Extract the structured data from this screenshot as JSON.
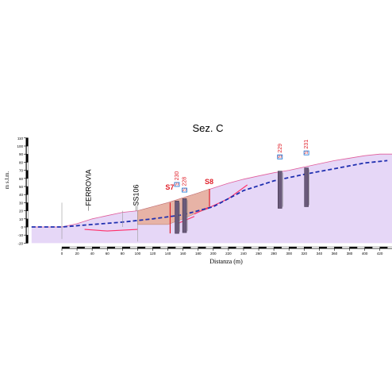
{
  "title": "Sez. C",
  "ylabel": "m s.l.m.",
  "xlabel": "Distanza (m)",
  "colors": {
    "terrain_fill": "#e6d7f7",
    "terrain_line": "#e05c9a",
    "cover_fill": "#e7b3a6",
    "water_line": "#1f2fb0",
    "pink_lines": "#ff2f6a",
    "borehole": "#6a5a7a",
    "borehole_label": "#e0202a",
    "piezometer": "#2f7fd6",
    "axis": "#000000"
  },
  "chart_data": {
    "type": "cross-section",
    "title": "Sez. C",
    "xlabel": "Distanza (m)",
    "ylabel": "m s.l.m.",
    "xlim": [
      -40,
      460
    ],
    "ylim": [
      -20,
      110
    ],
    "x_ticks": [
      0,
      20,
      40,
      60,
      80,
      100,
      120,
      140,
      160,
      180,
      200,
      220,
      240,
      260,
      280,
      300,
      320,
      340,
      360,
      380,
      400,
      420,
      440
    ],
    "y_ticks": [
      -20,
      -10,
      0,
      10,
      20,
      30,
      40,
      50,
      60,
      70,
      80,
      90,
      100,
      110
    ],
    "terrain_profile": [
      [
        -40,
        0
      ],
      [
        0,
        0
      ],
      [
        20,
        4
      ],
      [
        40,
        10
      ],
      [
        60,
        14
      ],
      [
        80,
        18
      ],
      [
        100,
        20
      ],
      [
        120,
        25
      ],
      [
        140,
        30
      ],
      [
        160,
        36
      ],
      [
        180,
        42
      ],
      [
        200,
        48
      ],
      [
        220,
        54
      ],
      [
        240,
        59
      ],
      [
        260,
        63
      ],
      [
        280,
        67
      ],
      [
        300,
        70
      ],
      [
        320,
        74
      ],
      [
        340,
        78
      ],
      [
        360,
        82
      ],
      [
        380,
        85
      ],
      [
        400,
        88
      ],
      [
        420,
        90
      ],
      [
        440,
        90
      ]
    ],
    "cover_layer": {
      "top": [
        [
          100,
          20
        ],
        [
          120,
          25
        ],
        [
          140,
          30
        ],
        [
          160,
          36
        ],
        [
          180,
          42
        ],
        [
          195,
          47
        ]
      ],
      "base": [
        [
          100,
          3
        ],
        [
          140,
          3
        ],
        [
          160,
          10
        ],
        [
          180,
          18
        ],
        [
          195,
          23
        ]
      ]
    },
    "groundwater_level": [
      [
        -40,
        0
      ],
      [
        0,
        0
      ],
      [
        40,
        3
      ],
      [
        80,
        6
      ],
      [
        120,
        10
      ],
      [
        160,
        15
      ],
      [
        200,
        25
      ],
      [
        240,
        45
      ],
      [
        280,
        57
      ],
      [
        320,
        65
      ],
      [
        360,
        72
      ],
      [
        400,
        79
      ],
      [
        430,
        82
      ]
    ],
    "pink_lines": [
      [
        [
          30,
          -3
        ],
        [
          60,
          -5
        ],
        [
          100,
          -3
        ]
      ],
      [
        [
          190,
          22
        ],
        [
          220,
          35
        ],
        [
          245,
          52
        ]
      ],
      [
        [
          150,
          3
        ],
        [
          175,
          13
        ]
      ],
      [
        [
          175,
          16
        ],
        [
          193,
          24
        ]
      ]
    ],
    "boreholes": [
      {
        "x": 143,
        "top": 30,
        "bottom": -8,
        "label": "S7",
        "label_y": 46,
        "style": "plain"
      },
      {
        "x": 152,
        "top": 32,
        "bottom": -8,
        "label": "S 230",
        "label_y": 53,
        "style": "column",
        "piezometer": true
      },
      {
        "x": 162,
        "top": 35,
        "bottom": -7,
        "label": "S 228",
        "label_y": 46,
        "style": "column",
        "piezometer": true
      },
      {
        "x": 195,
        "top": 47,
        "bottom": 25,
        "label": "S8",
        "label_y": 53,
        "style": "plain"
      },
      {
        "x": 288,
        "top": 69,
        "bottom": 23,
        "label": "S 229",
        "label_y": 87,
        "style": "column",
        "piezometer": true
      },
      {
        "x": 323,
        "top": 73,
        "bottom": 25,
        "label": "S 231",
        "label_y": 92,
        "style": "column",
        "piezometer": true
      }
    ],
    "annotations": [
      {
        "text": "FERROVIA",
        "x": 35,
        "y": 26,
        "bottom": 20
      },
      {
        "text": "SS106",
        "x": 98,
        "y": 26,
        "bottom": 20
      }
    ]
  }
}
